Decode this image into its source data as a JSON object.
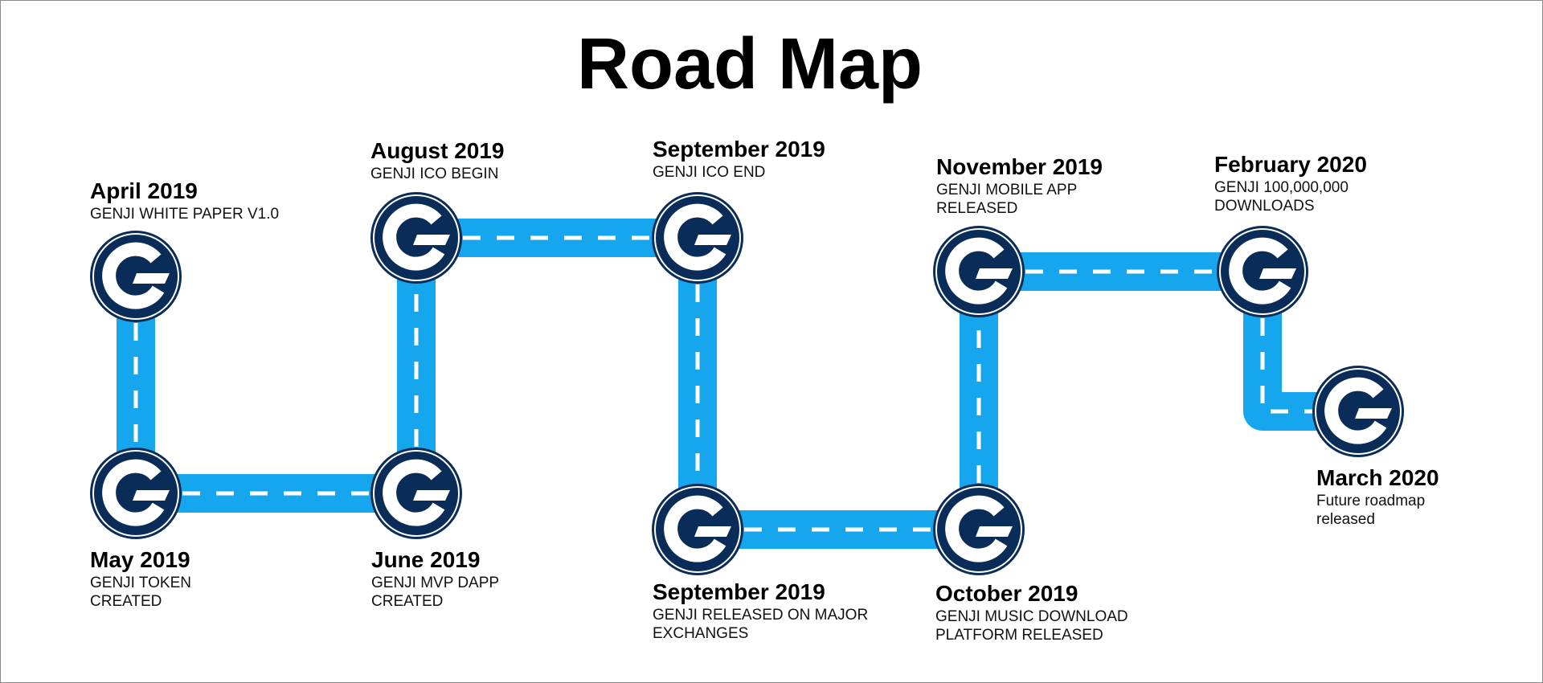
{
  "title": "Road Map",
  "colors": {
    "road": "#16a6ee",
    "dash": "#ffffff",
    "node_fill": "#0a2c58",
    "node_ring": "#ffffff"
  },
  "node_icon": "genji-g-logo-icon",
  "milestones": [
    {
      "date": "April 2019",
      "desc": "GENJI WHITE PAPER V1.0"
    },
    {
      "date": "May 2019",
      "desc": "GENJI TOKEN\nCREATED"
    },
    {
      "date": "June 2019",
      "desc": "GENJI MVP DAPP\nCREATED"
    },
    {
      "date": "August 2019",
      "desc": "GENJI ICO BEGIN"
    },
    {
      "date": "September 2019",
      "desc": "GENJI ICO END"
    },
    {
      "date": "September 2019",
      "desc": "GENJI RELEASED ON MAJOR\nEXCHANGES"
    },
    {
      "date": "October 2019",
      "desc": "GENJI MUSIC DOWNLOAD\nPLATFORM RELEASED"
    },
    {
      "date": "November 2019",
      "desc": "GENJI MOBILE APP\nRELEASED"
    },
    {
      "date": "February 2020",
      "desc": "GENJI 100,000,000\nDOWNLOADS"
    },
    {
      "date": "March 2020",
      "desc": "Future roadmap\nreleased"
    }
  ]
}
